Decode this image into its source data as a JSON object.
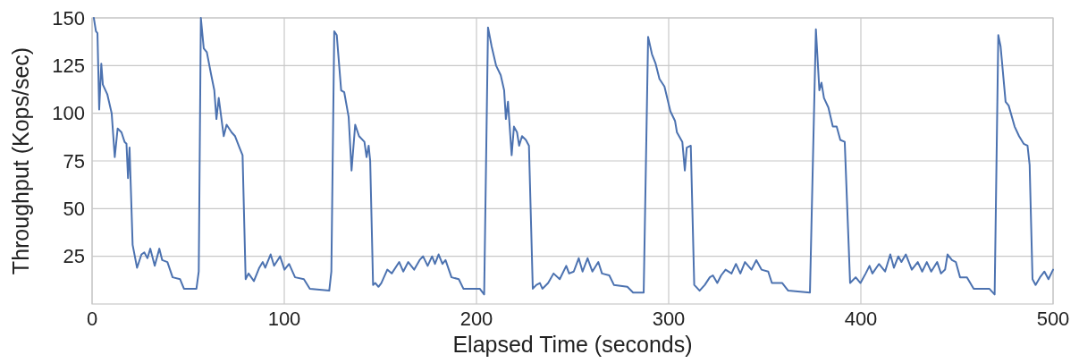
{
  "chart_data": {
    "type": "line",
    "xlabel": "Elapsed Time (seconds)",
    "ylabel": "Throughput (Kops/sec)",
    "xlim": [
      0,
      500
    ],
    "ylim": [
      0,
      150
    ],
    "xticks": [
      0,
      100,
      200,
      300,
      400,
      500
    ],
    "yticks": [
      25,
      50,
      75,
      100,
      125,
      150
    ],
    "grid": true,
    "marker": "none",
    "line_style": "solid",
    "series": [
      {
        "color": "#4c72b0",
        "x": [
          0.9,
          2,
          2.8,
          3.7,
          4.8,
          5.6,
          7.9,
          10.2,
          11.8,
          13.3,
          15.3,
          16.9,
          17.9,
          18.7,
          19.5,
          21.1,
          23.4,
          25.7,
          27.2,
          28.8,
          30.3,
          32.6,
          35,
          36.5,
          39.2,
          41.9,
          45.8,
          47.8,
          54.3,
          55.5,
          56.6,
          58.1,
          59.7,
          62,
          63.6,
          64.7,
          65.9,
          68.5,
          70,
          72.6,
          74.4,
          76.7,
          78.3,
          79.9,
          81.4,
          84.2,
          87,
          88.8,
          90.1,
          92.9,
          94.7,
          97.8,
          100.1,
          102.5,
          105.6,
          110.2,
          113.3,
          123.4,
          124.5,
          126,
          127.3,
          129.6,
          131.2,
          133.5,
          135,
          136.9,
          138.9,
          141.7,
          142.8,
          143.9,
          144.7,
          146.2,
          147.4,
          149,
          150.5,
          153.6,
          155.9,
          159.8,
          161.9,
          164.5,
          167.6,
          170.4,
          172.2,
          174.6,
          176.9,
          178.4,
          180.3,
          182.3,
          183.9,
          187,
          190.8,
          193.2,
          201.7,
          204,
          206,
          207.9,
          210.2,
          212.6,
          214.4,
          215.3,
          216.4,
          218.3,
          219.5,
          221.1,
          222.2,
          223.7,
          225.7,
          227.3,
          229.3,
          231.2,
          233,
          234.3,
          237.3,
          240.1,
          243.3,
          246.7,
          248.2,
          250.6,
          253.2,
          255.2,
          257.8,
          260.3,
          263.4,
          265.3,
          269.1,
          271.5,
          278.5,
          281.5,
          287,
          289.3,
          291.3,
          293.2,
          295.2,
          297.8,
          300.9,
          303.3,
          304.3,
          307.1,
          308.4,
          309.4,
          311.5,
          313.3,
          316.1,
          318.8,
          321.4,
          323,
          325.3,
          327.3,
          329.6,
          332.7,
          335,
          337.3,
          339.7,
          343.1,
          345.6,
          348.3,
          351.8,
          353.7,
          359.1,
          362.2,
          373.5,
          376.6,
          378.4,
          379.5,
          380.8,
          383.1,
          385.4,
          387.4,
          389.3,
          391.6,
          394.4,
          397.3,
          399.8,
          402.5,
          404.5,
          406,
          409.4,
          412.6,
          415.3,
          417.2,
          419.5,
          421.1,
          423.4,
          426.5,
          429.6,
          431.9,
          434.3,
          436.6,
          439.7,
          441.7,
          443.8,
          445.1,
          447.4,
          449.4,
          451.6,
          455.2,
          458.7,
          466.8,
          469.6,
          471.5,
          472.7,
          475.3,
          476.9,
          480,
          482.3,
          484.7,
          486.7,
          487.8,
          489.3,
          490.9,
          493.2,
          495.5,
          497.6,
          500
        ],
        "values": [
          150,
          143,
          142,
          102,
          126,
          115,
          110,
          100,
          77,
          92,
          90,
          85,
          84,
          66,
          82,
          31,
          19,
          26,
          27,
          24,
          29,
          20,
          29,
          23,
          22,
          14,
          13,
          8,
          8,
          17,
          150,
          134,
          132,
          120,
          112,
          97,
          108,
          88,
          94,
          90,
          88,
          82,
          78,
          13,
          16,
          12,
          19,
          22,
          19,
          26,
          20,
          25,
          18,
          21,
          14,
          13,
          8,
          7,
          17,
          143,
          141,
          112,
          111,
          98,
          70,
          94,
          88,
          85,
          77,
          83,
          75,
          10,
          11,
          9,
          11,
          18,
          16,
          22,
          17,
          22,
          18,
          23,
          25,
          20,
          25,
          21,
          26,
          21,
          23,
          14,
          13,
          8,
          8,
          5,
          145,
          135,
          125,
          120,
          112,
          97,
          106,
          78,
          93,
          90,
          83,
          88,
          86,
          83,
          8,
          10,
          11,
          8,
          11,
          16,
          13,
          20,
          16,
          17,
          24,
          17,
          24,
          17,
          22,
          16,
          15,
          10,
          9,
          6,
          6,
          140,
          131,
          126,
          118,
          114,
          101,
          96,
          90,
          85,
          70,
          82,
          83,
          10,
          7,
          10,
          14,
          15,
          11,
          15,
          18,
          16,
          21,
          16,
          22,
          18,
          23,
          18,
          17,
          11,
          11,
          7,
          6,
          144,
          112,
          116,
          108,
          103,
          93,
          93,
          86,
          85,
          11,
          14,
          11,
          16,
          20,
          16,
          21,
          17,
          26,
          19,
          25,
          22,
          26,
          18,
          22,
          17,
          22,
          17,
          22,
          16,
          18,
          26,
          23,
          22,
          14,
          14,
          8,
          8,
          5,
          141,
          135,
          106,
          104,
          93,
          88,
          84,
          83,
          73,
          13,
          10,
          14,
          17,
          13,
          18
        ]
      }
    ]
  }
}
